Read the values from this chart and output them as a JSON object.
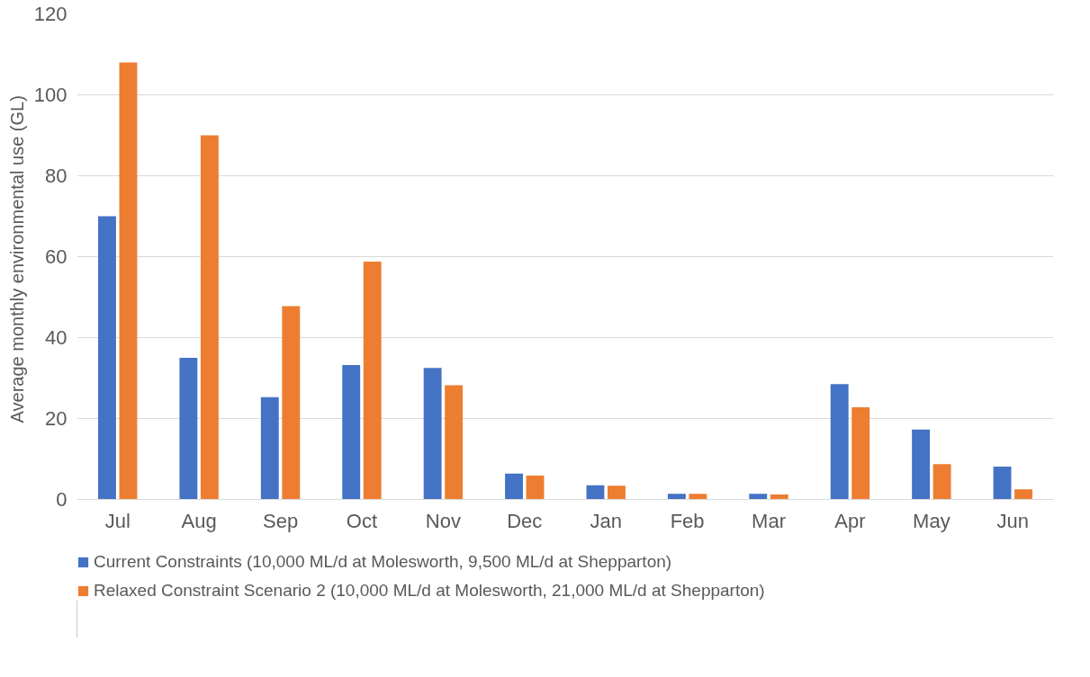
{
  "chart_data": {
    "type": "bar",
    "ylabel": "Average monthly  environmental use (GL)",
    "categories": [
      "Jul",
      "Aug",
      "Sep",
      "Oct",
      "Nov",
      "Dec",
      "Jan",
      "Feb",
      "Mar",
      "Apr",
      "May",
      "Jun"
    ],
    "series": [
      {
        "name": "Current Constraints (10,000 ML/d at Molesworth, 9,500 ML/d at Shepparton)",
        "color": "#4472c4",
        "values": [
          70,
          35,
          25.3,
          33.2,
          32.5,
          6.4,
          3.5,
          1.4,
          1.4,
          28.5,
          17.3,
          8.1
        ]
      },
      {
        "name": "Relaxed Constraint Scenario 2 (10,000 ML/d at Molesworth, 21,000 ML/d at Shepparton)",
        "color": "#ed7d31",
        "values": [
          108,
          90,
          47.8,
          58.8,
          28.2,
          5.9,
          3.4,
          1.4,
          1.2,
          22.8,
          8.7,
          2.5
        ]
      }
    ],
    "ylim": [
      0,
      120
    ],
    "yticks": [
      0,
      20,
      40,
      60,
      80,
      100,
      120
    ],
    "grid": "y",
    "legend": "bottom"
  }
}
